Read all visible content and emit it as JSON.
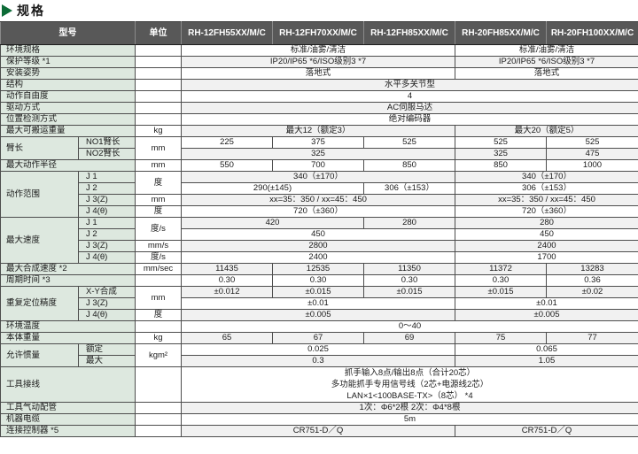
{
  "page": {
    "title": "规格"
  },
  "colors": {
    "accent_green": "#0c6b37",
    "header_bg": "#585858",
    "label_bg": "#dde8df",
    "zebra_row": "#f1f1f1",
    "border": "#4d4d4d"
  },
  "table": {
    "header": [
      {
        "t": "型号",
        "cs": 2
      },
      {
        "t": "单位"
      },
      {
        "t": "RH-12FH55XX/M/C"
      },
      {
        "t": "RH-12FH70XX/M/C"
      },
      {
        "t": "RH-12FH85XX/M/C"
      },
      {
        "t": "RH-20FH85XX/M/C"
      },
      {
        "t": "RH-20FH100XX/M/C"
      }
    ],
    "rows": [
      [
        {
          "t": "环境规格",
          "type": "label",
          "cs": 2
        },
        {
          "t": "",
          "type": "unit"
        },
        {
          "t": "标准/油雾/清洁",
          "cs": 3
        },
        {
          "t": "标准/油雾/清洁",
          "cs": 2
        }
      ],
      [
        {
          "t": "保护等级 *1",
          "type": "label",
          "cs": 2
        },
        {
          "t": "",
          "type": "unit"
        },
        {
          "t": "IP20/IP65 *6/ISO级别3 *7",
          "cs": 3
        },
        {
          "t": "IP20/IP65 *6/ISO级别3 *7",
          "cs": 2
        }
      ],
      [
        {
          "t": "安装姿势",
          "type": "label",
          "cs": 2
        },
        {
          "t": "",
          "type": "unit"
        },
        {
          "t": "落地式",
          "cs": 3
        },
        {
          "t": "落地式",
          "cs": 2
        }
      ],
      [
        {
          "t": "结构",
          "type": "label",
          "cs": 2
        },
        {
          "t": "",
          "type": "unit"
        },
        {
          "t": "水平多关节型",
          "cs": 5
        }
      ],
      [
        {
          "t": "动作自由度",
          "type": "label",
          "cs": 2
        },
        {
          "t": "",
          "type": "unit"
        },
        {
          "t": "4",
          "cs": 5
        }
      ],
      [
        {
          "t": "驱动方式",
          "type": "label",
          "cs": 2
        },
        {
          "t": "",
          "type": "unit"
        },
        {
          "t": "AC伺服马达",
          "cs": 5
        }
      ],
      [
        {
          "t": "位置检测方式",
          "type": "label",
          "cs": 2
        },
        {
          "t": "",
          "type": "unit"
        },
        {
          "t": "绝对编码器",
          "cs": 5
        }
      ],
      [
        {
          "t": "最大可搬运重量",
          "type": "label",
          "cs": 2
        },
        {
          "t": "kg",
          "type": "unit"
        },
        {
          "t": "最大12（额定3）",
          "cs": 3
        },
        {
          "t": "最大20（额定5）",
          "cs": 2
        }
      ],
      [
        {
          "t": "臂长",
          "type": "label",
          "rs": 2
        },
        {
          "t": "NO1臂长",
          "type": "sublabel"
        },
        {
          "t": "mm",
          "type": "unit",
          "rs": 2
        },
        {
          "t": "225"
        },
        {
          "t": "375"
        },
        {
          "t": "525"
        },
        {
          "t": "525"
        },
        {
          "t": "525"
        }
      ],
      [
        {
          "t": "NO2臂长",
          "type": "sublabel"
        },
        {
          "t": "325",
          "cs": 3
        },
        {
          "t": "325"
        },
        {
          "t": "475"
        }
      ],
      [
        {
          "t": "最大动作半径",
          "type": "label",
          "cs": 2
        },
        {
          "t": "mm",
          "type": "unit"
        },
        {
          "t": "550"
        },
        {
          "t": "700"
        },
        {
          "t": "850"
        },
        {
          "t": "850"
        },
        {
          "t": "1000"
        }
      ],
      [
        {
          "t": "动作范围",
          "type": "label",
          "rs": 4
        },
        {
          "t": "J 1",
          "type": "sublabel"
        },
        {
          "t": "度",
          "type": "unit",
          "rs": 2
        },
        {
          "t": "340（±170）",
          "cs": 3
        },
        {
          "t": "340（±170）",
          "cs": 2
        }
      ],
      [
        {
          "t": "J 2",
          "type": "sublabel"
        },
        {
          "t": "290(±145)",
          "cs": 2
        },
        {
          "t": "306（±153）"
        },
        {
          "t": "306（±153）",
          "cs": 2
        }
      ],
      [
        {
          "t": "J 3(Z)",
          "type": "sublabel"
        },
        {
          "t": "mm",
          "type": "unit"
        },
        {
          "t": "xx=35：350 / xx=45：450",
          "cs": 3
        },
        {
          "t": "xx=35：350 / xx=45：450",
          "cs": 2
        }
      ],
      [
        {
          "t": "J 4(θ)",
          "type": "sublabel"
        },
        {
          "t": "度",
          "type": "unit"
        },
        {
          "t": "720（±360）",
          "cs": 3
        },
        {
          "t": "720（±360）",
          "cs": 2
        }
      ],
      [
        {
          "t": "最大速度",
          "type": "label",
          "rs": 4
        },
        {
          "t": "J 1",
          "type": "sublabel"
        },
        {
          "t": "度/s",
          "type": "unit",
          "rs": 2
        },
        {
          "t": "420",
          "cs": 2
        },
        {
          "t": "280"
        },
        {
          "t": "280",
          "cs": 2
        }
      ],
      [
        {
          "t": "J 2",
          "type": "sublabel"
        },
        {
          "t": "450",
          "cs": 3
        },
        {
          "t": "450",
          "cs": 2
        }
      ],
      [
        {
          "t": "J 3(Z)",
          "type": "sublabel"
        },
        {
          "t": "mm/s",
          "type": "unit"
        },
        {
          "t": "2800",
          "cs": 3
        },
        {
          "t": "2400",
          "cs": 2
        }
      ],
      [
        {
          "t": "J 4(θ)",
          "type": "sublabel"
        },
        {
          "t": "度/s",
          "type": "unit"
        },
        {
          "t": "2400",
          "cs": 3
        },
        {
          "t": "1700",
          "cs": 2
        }
      ],
      [
        {
          "t": "最大合成速度 *2",
          "type": "label",
          "cs": 2
        },
        {
          "t": "mm/sec",
          "type": "unit"
        },
        {
          "t": "11435"
        },
        {
          "t": "12535"
        },
        {
          "t": "11350"
        },
        {
          "t": "11372"
        },
        {
          "t": "13283"
        }
      ],
      [
        {
          "t": "周期时间 *3",
          "type": "label",
          "cs": 2
        },
        {
          "t": "",
          "type": "unit"
        },
        {
          "t": "0.30"
        },
        {
          "t": "0.30"
        },
        {
          "t": "0.30"
        },
        {
          "t": "0.30"
        },
        {
          "t": "0.36"
        }
      ],
      [
        {
          "t": "重复定位精度",
          "type": "label",
          "rs": 3
        },
        {
          "t": "X-Y合成",
          "type": "sublabel"
        },
        {
          "t": "mm",
          "type": "unit",
          "rs": 2
        },
        {
          "t": "±0.012"
        },
        {
          "t": "±0.015"
        },
        {
          "t": "±0.015"
        },
        {
          "t": "±0.015"
        },
        {
          "t": "±0.02"
        }
      ],
      [
        {
          "t": "J 3(Z)",
          "type": "sublabel"
        },
        {
          "t": "±0.01",
          "cs": 3
        },
        {
          "t": "±0.01",
          "cs": 2
        }
      ],
      [
        {
          "t": "J 4(θ)",
          "type": "sublabel"
        },
        {
          "t": "度",
          "type": "unit"
        },
        {
          "t": "±0.005",
          "cs": 3
        },
        {
          "t": "±0.005",
          "cs": 2
        }
      ],
      [
        {
          "t": "环境温度",
          "type": "label",
          "cs": 2
        },
        {
          "t": "",
          "type": "unit"
        },
        {
          "t": "0～40",
          "cs": 5
        }
      ],
      [
        {
          "t": "本体重量",
          "type": "label",
          "cs": 2
        },
        {
          "t": "kg",
          "type": "unit"
        },
        {
          "t": "65"
        },
        {
          "t": "67"
        },
        {
          "t": "69"
        },
        {
          "t": "75"
        },
        {
          "t": "77"
        }
      ],
      [
        {
          "t": "允许惯量",
          "type": "label",
          "rs": 2
        },
        {
          "t": "额定",
          "type": "sublabel"
        },
        {
          "t": "kgm²",
          "type": "unit",
          "rs": 2
        },
        {
          "t": "0.025",
          "cs": 3
        },
        {
          "t": "0.065",
          "cs": 2
        }
      ],
      [
        {
          "t": "最大",
          "type": "sublabel"
        },
        {
          "t": "0.3",
          "cs": 3
        },
        {
          "t": "1.05",
          "cs": 2
        }
      ],
      [
        {
          "t": "工具接线",
          "type": "label",
          "cs": 2
        },
        {
          "t": "",
          "type": "unit"
        },
        {
          "t": "抓手输入8点/输出8点（合计20芯）\n多功能抓手专用信号线（2芯+电源线2芯）\nLAN×1<100BASE-TX>（8芯） *4",
          "cs": 5,
          "multiline": true
        }
      ],
      [
        {
          "t": "工具气动配管",
          "type": "label",
          "cs": 2
        },
        {
          "t": "",
          "type": "unit"
        },
        {
          "t": "1次：Φ6*2根 2次：Φ4*8根",
          "cs": 5
        }
      ],
      [
        {
          "t": "机器电缆",
          "type": "label",
          "cs": 2
        },
        {
          "t": "",
          "type": "unit"
        },
        {
          "t": "5m",
          "cs": 5
        }
      ],
      [
        {
          "t": "连接控制器 *5",
          "type": "label",
          "cs": 2
        },
        {
          "t": "",
          "type": "unit"
        },
        {
          "t": "CR751-D／Q",
          "cs": 3
        },
        {
          "t": "CR751-D／Q",
          "cs": 2
        }
      ]
    ]
  }
}
